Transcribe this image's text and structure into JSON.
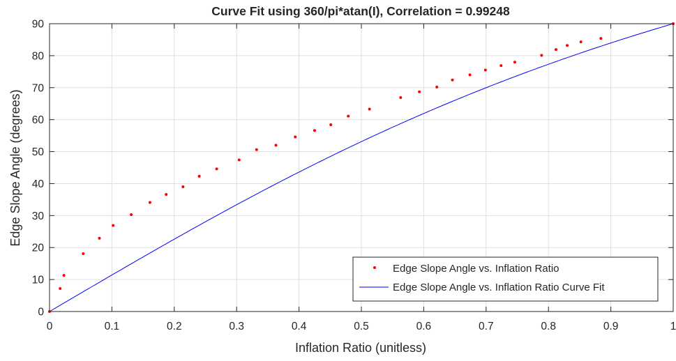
{
  "chart_data": {
    "type": "scatter",
    "title": "Curve Fit using 360/pi*atan(I), Correlation = 0.99248",
    "xlabel": "Inflation Ratio (unitless)",
    "ylabel": "Edge Slope Angle (degrees)",
    "xlim": [
      0,
      1
    ],
    "ylim": [
      0,
      90
    ],
    "xticks": [
      0,
      0.1,
      0.2,
      0.3,
      0.4,
      0.5,
      0.6,
      0.7,
      0.8,
      0.9,
      1
    ],
    "xtick_labels": [
      "0",
      "0.1",
      "0.2",
      "0.3",
      "0.4",
      "0.5",
      "0.6",
      "0.7",
      "0.8",
      "0.9",
      "1"
    ],
    "yticks": [
      0,
      10,
      20,
      30,
      40,
      50,
      60,
      70,
      80,
      90
    ],
    "ytick_labels": [
      "0",
      "10",
      "20",
      "30",
      "40",
      "50",
      "60",
      "70",
      "80",
      "90"
    ],
    "grid": true,
    "legend_position": "bottom-right",
    "series": [
      {
        "name": "Edge Slope Angle vs. Inflation Ratio",
        "kind": "scatter",
        "color": "#ff0000",
        "marker": "point",
        "x": [
          0,
          0.017,
          0.023,
          0.054,
          0.08,
          0.102,
          0.131,
          0.161,
          0.187,
          0.214,
          0.24,
          0.268,
          0.304,
          0.332,
          0.363,
          0.394,
          0.425,
          0.451,
          0.479,
          0.513,
          0.563,
          0.593,
          0.621,
          0.646,
          0.674,
          0.699,
          0.724,
          0.746,
          0.789,
          0.812,
          0.83,
          0.852,
          0.884,
          1.0
        ],
        "y": [
          0,
          7.2,
          11.3,
          18.1,
          22.9,
          26.9,
          30.3,
          34.1,
          36.6,
          39,
          42.3,
          44.6,
          47.4,
          50.6,
          52,
          54.6,
          56.6,
          58.4,
          61.1,
          63.3,
          66.9,
          68.7,
          70.2,
          72.4,
          74,
          75.5,
          76.9,
          78,
          80.1,
          81.9,
          83.2,
          84.3,
          85.4,
          90
        ]
      },
      {
        "name": "Edge Slope Angle vs. Inflation Ratio Curve Fit",
        "kind": "line",
        "color": "#0000ff",
        "function": "360/pi*atan(I)",
        "x_range": [
          0,
          1
        ]
      }
    ]
  }
}
